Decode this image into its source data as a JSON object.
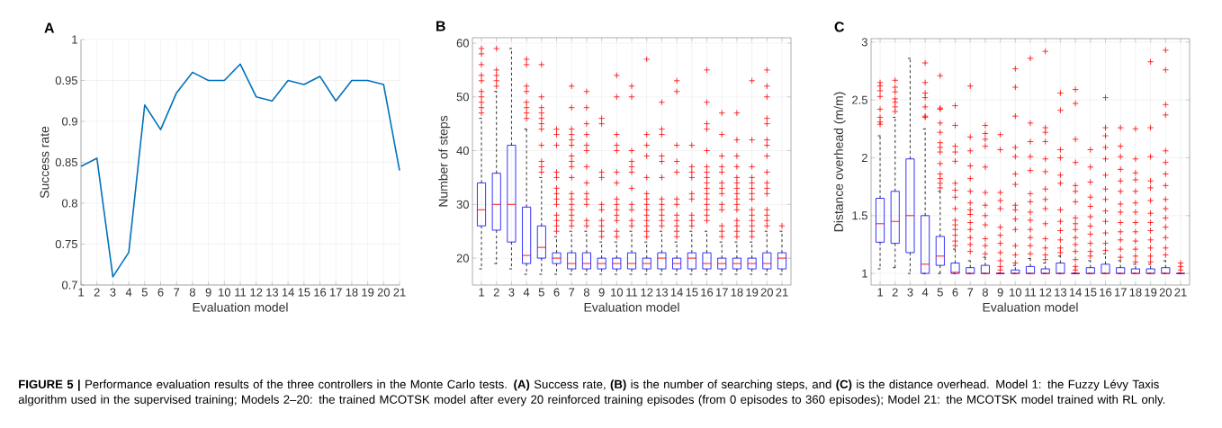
{
  "chart_data": [
    {
      "type": "line",
      "title": "A",
      "xlabel": "Evaluation model",
      "ylabel": "Success rate",
      "x": [
        1,
        2,
        3,
        4,
        5,
        6,
        7,
        8,
        9,
        10,
        11,
        12,
        13,
        14,
        15,
        16,
        17,
        18,
        19,
        20,
        21
      ],
      "series": [
        {
          "color": "#0072bd",
          "values": [
            0.845,
            0.855,
            0.71,
            0.74,
            0.92,
            0.89,
            0.935,
            0.96,
            0.95,
            0.95,
            0.97,
            0.93,
            0.925,
            0.95,
            0.945,
            0.955,
            0.925,
            0.95,
            0.95,
            0.945,
            0.84
          ]
        }
      ],
      "xlim": [
        1,
        21
      ],
      "xticks": [
        1,
        2,
        3,
        4,
        5,
        6,
        7,
        8,
        9,
        10,
        11,
        12,
        13,
        14,
        15,
        16,
        17,
        18,
        19,
        20,
        21
      ],
      "ylim": [
        0.7,
        1
      ],
      "yticks": [
        0.7,
        0.75,
        0.8,
        0.85,
        0.9,
        0.95,
        1
      ],
      "grid": true,
      "annotations": [
        "**FIGURE 5 |** Performance evaluation results of the three controllers in the Monte Carlo tests. **(A)** Success rate, **(B)** is the number of searching steps, and **(C)** is the distance overhead. Model 1: the Fuzzy Lévy Taxis algorithm used in the supervised training; Models 2–20: the trained MCOTSK model after every 20 reinforced training episodes (from 0 episodes to 360 episodes); Model 21: the MCOTSK model trained with RL only."
      ]
    },
    {
      "type": "box",
      "title": "B",
      "xlabel": "Evaluation model",
      "ylabel": "Number of steps",
      "categories": [
        "1",
        "2",
        "3",
        "4",
        "5",
        "6",
        "7",
        "8",
        "9",
        "10",
        "11",
        "12",
        "13",
        "14",
        "15",
        "16",
        "17",
        "18",
        "19",
        "20",
        "21"
      ],
      "ylim": [
        15,
        61
      ],
      "yticks": [
        20,
        30,
        40,
        50,
        60
      ],
      "grid": true,
      "marker": "cross",
      "series": [
        {
          "color": "#0000ff",
          "boxes": [
            {
              "low": 18,
              "q1": 26,
              "median": 29,
              "q3": 34,
              "high": 46,
              "outliers": [
                47,
                48,
                49,
                50,
                51,
                53,
                54,
                56,
                58,
                59
              ]
            },
            {
              "low": 19,
              "q1": 25.2,
              "median": 30,
              "q3": 35.8,
              "high": 51,
              "outliers": [
                52,
                53,
                54,
                55,
                59
              ]
            },
            {
              "low": 18,
              "q1": 23,
              "median": 30,
              "q3": 41,
              "high": 59
            },
            {
              "low": 17,
              "q1": 19,
              "median": 20.5,
              "q3": 29.5,
              "high": 44,
              "outliers": [
                46,
                47,
                48,
                49,
                51,
                52,
                56,
                57
              ]
            },
            {
              "low": 17,
              "q1": 20,
              "median": 22,
              "q3": 26,
              "high": 35,
              "outliers": [
                36,
                37,
                38,
                41,
                44,
                45,
                46,
                47,
                48,
                50,
                56
              ]
            },
            {
              "low": 17,
              "q1": 19,
              "median": 20,
              "q3": 21,
              "high": 24,
              "outliers": [
                25,
                26,
                27,
                28,
                30,
                31,
                32,
                33,
                35,
                36,
                41,
                43,
                44
              ]
            },
            {
              "low": 17,
              "q1": 18,
              "median": 19,
              "q3": 21,
              "high": 25,
              "outliers": [
                26,
                27,
                28,
                29,
                30,
                31,
                32,
                35,
                37,
                38,
                39,
                41,
                42,
                43,
                44,
                48,
                52
              ]
            },
            {
              "low": 17,
              "q1": 18,
              "median": 19,
              "q3": 21,
              "high": 25,
              "outliers": [
                26,
                27,
                30,
                31,
                32,
                34,
                37,
                40,
                41,
                43,
                45,
                48,
                51
              ]
            },
            {
              "low": 17,
              "q1": 18,
              "median": 19,
              "q3": 20,
              "high": 23,
              "outliers": [
                24,
                25,
                26,
                27,
                29,
                30,
                35,
                36,
                45,
                46
              ]
            },
            {
              "low": 17,
              "q1": 18,
              "median": 19,
              "q3": 20,
              "high": 23,
              "outliers": [
                24,
                25,
                27,
                28,
                29,
                30,
                31,
                34,
                36,
                40,
                41,
                43,
                50,
                54
              ]
            },
            {
              "low": 17,
              "q1": 18,
              "median": 19,
              "q3": 21,
              "high": 25,
              "outliers": [
                26,
                27,
                29,
                30,
                33,
                36,
                37,
                38,
                40,
                50,
                52
              ]
            },
            {
              "low": 17,
              "q1": 18,
              "median": 19,
              "q3": 20,
              "high": 23,
              "outliers": [
                24,
                25,
                26,
                27,
                28,
                29,
                30,
                31,
                32,
                35,
                39,
                41,
                43,
                57
              ]
            },
            {
              "low": 17,
              "q1": 18,
              "median": 20,
              "q3": 21,
              "high": 25,
              "outliers": [
                26,
                27,
                28,
                29,
                30,
                31,
                35,
                38,
                39,
                43,
                44,
                49
              ]
            },
            {
              "low": 17,
              "q1": 18,
              "median": 19,
              "q3": 20,
              "high": 23,
              "outliers": [
                24,
                25,
                26,
                27,
                28,
                30,
                31,
                36,
                38,
                41,
                51,
                53
              ]
            },
            {
              "low": 17,
              "q1": 18,
              "median": 20,
              "q3": 21,
              "high": 25,
              "outliers": [
                26,
                27,
                28,
                31,
                32,
                35,
                36,
                37,
                41
              ]
            },
            {
              "low": 17,
              "q1": 18,
              "median": 19,
              "q3": 21,
              "high": 25,
              "outliers": [
                27,
                28,
                29,
                30,
                31,
                32,
                33,
                34,
                35,
                36,
                37,
                40,
                44,
                45,
                49,
                55
              ]
            },
            {
              "low": 17,
              "q1": 18,
              "median": 19,
              "q3": 20,
              "high": 23,
              "outliers": [
                24,
                25,
                26,
                29,
                30,
                32,
                33,
                34,
                36,
                37,
                39,
                43,
                47
              ]
            },
            {
              "low": 17,
              "q1": 18,
              "median": 19,
              "q3": 20,
              "high": 23,
              "outliers": [
                24,
                25,
                26,
                27,
                29,
                30,
                31,
                32,
                33,
                34,
                35,
                37,
                39,
                42,
                47
              ]
            },
            {
              "low": 17,
              "q1": 18,
              "median": 19,
              "q3": 20,
              "high": 23,
              "outliers": [
                24,
                25,
                26,
                27,
                28,
                29,
                31,
                32,
                33,
                34,
                35,
                37,
                42,
                53
              ]
            },
            {
              "low": 17,
              "q1": 18,
              "median": 19,
              "q3": 21,
              "high": 25,
              "outliers": [
                26,
                27,
                28,
                29,
                32,
                33,
                34,
                36,
                39,
                41,
                42,
                45,
                46,
                50,
                52,
                55
              ]
            },
            {
              "low": 17,
              "q1": 18,
              "median": 20,
              "q3": 21,
              "high": 25,
              "outliers": [
                26
              ]
            }
          ]
        }
      ]
    },
    {
      "type": "box",
      "title": "C",
      "xlabel": "Evaluation model",
      "ylabel": "Distance overhead (m/m)",
      "categories": [
        "1",
        "2",
        "3",
        "4",
        "5",
        "6",
        "7",
        "8",
        "9",
        "10",
        "11",
        "12",
        "13",
        "14",
        "15",
        "16",
        "17",
        "18",
        "19",
        "20",
        "21"
      ],
      "ylim": [
        0.9,
        3.03
      ],
      "yticks": [
        1,
        1.5,
        2,
        2.5,
        3
      ],
      "grid": true,
      "marker": "cross",
      "series": [
        {
          "color": "#0000ff",
          "boxes": [
            {
              "low": 1.04,
              "q1": 1.27,
              "median": 1.43,
              "q3": 1.65,
              "high": 2.19,
              "outliers": [
                2.29,
                2.31,
                2.35,
                2.42,
                2.53,
                2.58,
                2.62,
                2.65
              ]
            },
            {
              "low": 1.05,
              "q1": 1.26,
              "median": 1.45,
              "q3": 1.71,
              "high": 2.35,
              "outliers": [
                2.4,
                2.44,
                2.48,
                2.51,
                2.57,
                2.61,
                2.67
              ]
            },
            {
              "low": 1.0,
              "q1": 1.18,
              "median": 1.5,
              "q3": 1.99,
              "high": 2.86
            },
            {
              "low": 1.0,
              "q1": 1.0,
              "median": 1.08,
              "q3": 1.5,
              "high": 2.25,
              "outliers": [
                2.35,
                2.36,
                2.44,
                2.52,
                2.56,
                2.65,
                2.82
              ]
            },
            {
              "low": 1.0,
              "q1": 1.07,
              "median": 1.15,
              "q3": 1.32,
              "high": 1.71,
              "outliers": [
                1.74,
                1.78,
                1.82,
                1.86,
                1.95,
                2.05,
                2.09,
                2.13,
                2.22,
                2.3,
                2.42,
                2.43,
                2.71
              ]
            },
            {
              "low": 1.0,
              "q1": 1.0,
              "median": 1.01,
              "q3": 1.09,
              "high": 1.21,
              "outliers": [
                1.24,
                1.28,
                1.33,
                1.38,
                1.42,
                1.46,
                1.56,
                1.66,
                1.72,
                1.78,
                1.97,
                2.05,
                2.1,
                2.28,
                2.45
              ]
            },
            {
              "low": 1.0,
              "q1": 1.0,
              "median": 1.0,
              "q3": 1.05,
              "high": 1.11,
              "outliers": [
                1.19,
                1.25,
                1.31,
                1.38,
                1.44,
                1.51,
                1.55,
                1.61,
                1.71,
                1.82,
                1.93,
                2.06,
                2.18,
                2.62
              ]
            },
            {
              "low": 1.0,
              "q1": 1.0,
              "median": 1.0,
              "q3": 1.07,
              "high": 1.14,
              "outliers": [
                1.17,
                1.24,
                1.3,
                1.42,
                1.5,
                1.59,
                1.7,
                1.92,
                2.1,
                2.16,
                2.21,
                2.28
              ]
            },
            {
              "low": 1.0,
              "q1": 1.0,
              "median": 1.0,
              "q3": 1.0,
              "high": 1.0,
              "outliers": [
                1.03,
                1.06,
                1.11,
                1.18,
                1.26,
                1.33,
                1.4,
                1.56,
                1.63,
                1.7,
                2.07,
                2.2
              ]
            },
            {
              "low": 1.0,
              "q1": 1.0,
              "median": 1.0,
              "q3": 1.03,
              "high": 1.07,
              "outliers": [
                1.09,
                1.16,
                1.24,
                1.38,
                1.47,
                1.55,
                1.59,
                1.77,
                1.86,
                2.01,
                2.09,
                2.36,
                2.61,
                2.77
              ]
            },
            {
              "low": 1.0,
              "q1": 1.0,
              "median": 1.0,
              "q3": 1.06,
              "high": 1.13,
              "outliers": [
                1.17,
                1.24,
                1.31,
                1.38,
                1.46,
                1.53,
                1.62,
                1.69,
                1.89,
                2.01,
                2.14,
                2.3,
                2.86
              ]
            },
            {
              "low": 1.0,
              "q1": 1.0,
              "median": 1.0,
              "q3": 1.04,
              "high": 1.09,
              "outliers": [
                1.12,
                1.16,
                1.22,
                1.3,
                1.43,
                1.56,
                1.64,
                1.73,
                1.88,
                1.99,
                2.14,
                2.22,
                2.26,
                2.92
              ]
            },
            {
              "low": 1.0,
              "q1": 1.0,
              "median": 1.0,
              "q3": 1.09,
              "high": 1.15,
              "outliers": [
                1.18,
                1.22,
                1.29,
                1.37,
                1.45,
                1.55,
                1.78,
                1.85,
                2.0,
                2.07,
                2.41,
                2.56
              ]
            },
            {
              "low": 1.0,
              "q1": 1.0,
              "median": 1.0,
              "q3": 1.0,
              "high": 1.0,
              "outliers": [
                1.03,
                1.06,
                1.12,
                1.19,
                1.25,
                1.31,
                1.38,
                1.43,
                1.48,
                1.62,
                1.71,
                1.76,
                1.96,
                2.16,
                2.47,
                2.59
              ]
            },
            {
              "low": 1.0,
              "q1": 1.0,
              "median": 1.0,
              "q3": 1.05,
              "high": 1.11,
              "outliers": [
                1.15,
                1.19,
                1.26,
                1.34,
                1.41,
                1.49,
                1.58,
                1.66,
                1.79,
                1.92,
                2.07
              ]
            },
            {
              "low": 1.0,
              "q1": 1.0,
              "median": 1.0,
              "q3": 1.08,
              "high": 1.17,
              "outliers": [
                1.2,
                1.26,
                1.35,
                1.45,
                1.54,
                1.64,
                1.73,
                1.85,
                1.99,
                2.09,
                2.19,
                2.26,
                2.52
              ]
            },
            {
              "low": 1.0,
              "q1": 1.0,
              "median": 1.0,
              "q3": 1.05,
              "high": 1.11,
              "outliers": [
                1.14,
                1.21,
                1.29,
                1.36,
                1.44,
                1.53,
                1.6,
                1.71,
                1.8,
                1.9,
                2.01,
                2.1,
                2.26
              ]
            },
            {
              "low": 1.0,
              "q1": 1.0,
              "median": 1.0,
              "q3": 1.04,
              "high": 1.08,
              "outliers": [
                1.1,
                1.15,
                1.21,
                1.28,
                1.36,
                1.44,
                1.53,
                1.61,
                1.71,
                1.81,
                1.87,
                1.99,
                2.25
              ]
            },
            {
              "low": 1.0,
              "q1": 1.0,
              "median": 1.0,
              "q3": 1.04,
              "high": 1.08,
              "outliers": [
                1.1,
                1.15,
                1.22,
                1.29,
                1.37,
                1.44,
                1.52,
                1.63,
                1.74,
                1.8,
                2.01,
                2.26,
                2.83
              ]
            },
            {
              "low": 1.0,
              "q1": 1.0,
              "median": 1.0,
              "q3": 1.05,
              "high": 1.11,
              "outliers": [
                1.16,
                1.22,
                1.31,
                1.4,
                1.48,
                1.56,
                1.64,
                1.76,
                1.86,
                1.96,
                2.06,
                2.37,
                2.46,
                2.76,
                2.93
              ]
            },
            {
              "low": 1.0,
              "q1": 1.0,
              "median": 1.0,
              "q3": 1.0,
              "high": 1.0,
              "outliers": [
                1.03,
                1.06,
                1.09
              ]
            }
          ]
        }
      ]
    }
  ]
}
